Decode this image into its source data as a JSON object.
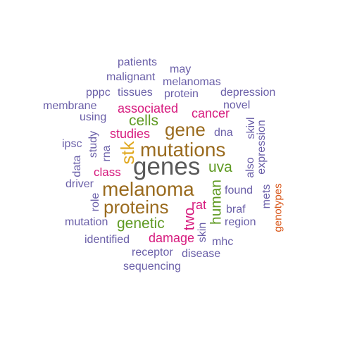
{
  "colors": {
    "purple": "#6a5fa8",
    "magenta": "#d6197d",
    "brown": "#9a6b1e",
    "green": "#5f9a23",
    "gray": "#595959",
    "gold": "#e0a820",
    "orange": "#d9581b"
  },
  "words": {
    "genes": "genes",
    "mutations": "mutations",
    "melanoma": "melanoma",
    "proteins": "proteins",
    "gene": "gene",
    "stk": "stk",
    "cells": "cells",
    "genetic": "genetic",
    "uva": "uva",
    "human": "human",
    "associated": "associated",
    "cancer": "cancer",
    "studies": "studies",
    "class": "class",
    "damage": "damage",
    "two": "two",
    "rat": "rat",
    "genotypes": "genotypes",
    "patients": "patients",
    "may": "may",
    "malignant": "malignant",
    "melanomas": "melanomas",
    "pppc": "pppc",
    "tissues": "tissues",
    "protein": "protein",
    "depression": "depression",
    "membrane": "membrane",
    "novel": "novel",
    "using": "using",
    "dna": "dna",
    "ipsc": "ipsc",
    "study": "study",
    "rna": "rna",
    "data": "data",
    "driver": "driver",
    "role": "role",
    "found": "found",
    "braf": "braf",
    "region": "region",
    "mutation": "mutation",
    "skin": "skin",
    "identified": "identified",
    "mhc": "mhc",
    "receptor": "receptor",
    "disease": "disease",
    "sequencing": "sequencing",
    "skivl": "skivl",
    "also": "also",
    "expression": "expression",
    "mets": "mets"
  }
}
